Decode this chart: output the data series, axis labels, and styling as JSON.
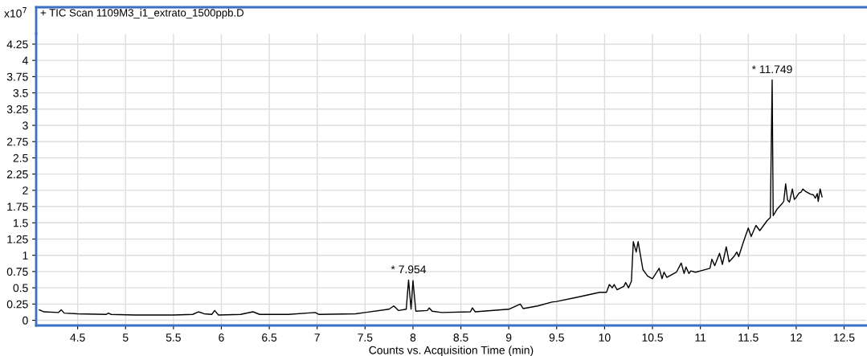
{
  "chart_data": {
    "type": "line",
    "title": "+ TIC Scan 1109M3_i1_extrato_1500ppb.D",
    "xlabel": "Counts vs. Acquisition Time (min)",
    "ylabel": "x10$^{7}$",
    "x": [
      4.1,
      4.15,
      4.3,
      4.33,
      4.36,
      4.5,
      4.8,
      4.82,
      4.85,
      5.1,
      5.5,
      5.7,
      5.76,
      5.82,
      5.9,
      5.93,
      5.97,
      6.2,
      6.33,
      6.4,
      6.7,
      6.98,
      7.02,
      7.4,
      7.5,
      7.75,
      7.8,
      7.85,
      7.93,
      7.954,
      7.98,
      8.0,
      8.03,
      8.15,
      8.17,
      8.2,
      8.3,
      8.6,
      8.62,
      8.65,
      9.0,
      9.12,
      9.15,
      9.3,
      9.45,
      9.5,
      9.7,
      9.95,
      10.02,
      10.05,
      10.08,
      10.1,
      10.13,
      10.2,
      10.22,
      10.25,
      10.28,
      10.3,
      10.33,
      10.35,
      10.4,
      10.45,
      10.5,
      10.57,
      10.6,
      10.62,
      10.65,
      10.75,
      10.8,
      10.83,
      10.85,
      10.88,
      10.9,
      10.95,
      11.0,
      11.1,
      11.12,
      11.15,
      11.2,
      11.23,
      11.27,
      11.3,
      11.35,
      11.38,
      11.4,
      11.45,
      11.5,
      11.53,
      11.58,
      11.62,
      11.7,
      11.73,
      11.749,
      11.76,
      11.8,
      11.85,
      11.87,
      11.89,
      11.91,
      11.93,
      11.96,
      11.98,
      12.0,
      12.03,
      12.05,
      12.07,
      12.1,
      12.15,
      12.18,
      12.2,
      12.22,
      12.23,
      12.25,
      12.27
    ],
    "series": [
      {
        "color": "#000000",
        "values": [
          0.16,
          0.13,
          0.12,
          0.16,
          0.11,
          0.1,
          0.09,
          0.11,
          0.09,
          0.08,
          0.08,
          0.09,
          0.13,
          0.1,
          0.09,
          0.15,
          0.08,
          0.09,
          0.13,
          0.09,
          0.09,
          0.12,
          0.09,
          0.1,
          0.12,
          0.17,
          0.22,
          0.15,
          0.17,
          0.62,
          0.17,
          0.61,
          0.14,
          0.15,
          0.19,
          0.14,
          0.12,
          0.13,
          0.19,
          0.13,
          0.17,
          0.25,
          0.18,
          0.22,
          0.28,
          0.29,
          0.35,
          0.43,
          0.43,
          0.55,
          0.5,
          0.55,
          0.47,
          0.52,
          0.58,
          0.5,
          0.6,
          1.21,
          1.05,
          1.21,
          0.78,
          0.68,
          0.64,
          0.8,
          0.64,
          0.74,
          0.66,
          0.74,
          0.88,
          0.72,
          0.82,
          0.72,
          0.76,
          0.74,
          0.76,
          0.8,
          0.94,
          0.84,
          1.03,
          0.86,
          1.13,
          0.9,
          0.98,
          1.05,
          0.98,
          1.21,
          1.42,
          1.29,
          1.46,
          1.38,
          1.54,
          1.58,
          3.7,
          1.61,
          1.71,
          1.79,
          1.83,
          2.1,
          1.85,
          1.82,
          2.02,
          1.86,
          1.89,
          1.96,
          1.97,
          2.02,
          1.98,
          1.94,
          1.93,
          1.88,
          1.95,
          1.83,
          2.02,
          1.9
        ]
      }
    ],
    "annotations": [
      {
        "text": "* 7.954",
        "x": 7.954,
        "y": 0.62
      },
      {
        "text": "* 11.749",
        "x": 11.749,
        "y": 3.7
      }
    ],
    "xlim": [
      4.067,
      12.73
    ],
    "ylim": [
      -0.08,
      4.41
    ],
    "xticks": [
      4.5,
      5,
      5.5,
      6,
      6.5,
      7,
      7.5,
      8,
      8.5,
      9,
      9.5,
      10,
      10.5,
      11,
      11.5,
      12,
      12.5
    ],
    "yticks": [
      0,
      0.25,
      0.5,
      0.75,
      1,
      1.25,
      1.5,
      1.75,
      2,
      2.25,
      2.5,
      2.75,
      3,
      3.25,
      3.5,
      3.75,
      4,
      4.25
    ],
    "grid": true,
    "legend": false
  }
}
